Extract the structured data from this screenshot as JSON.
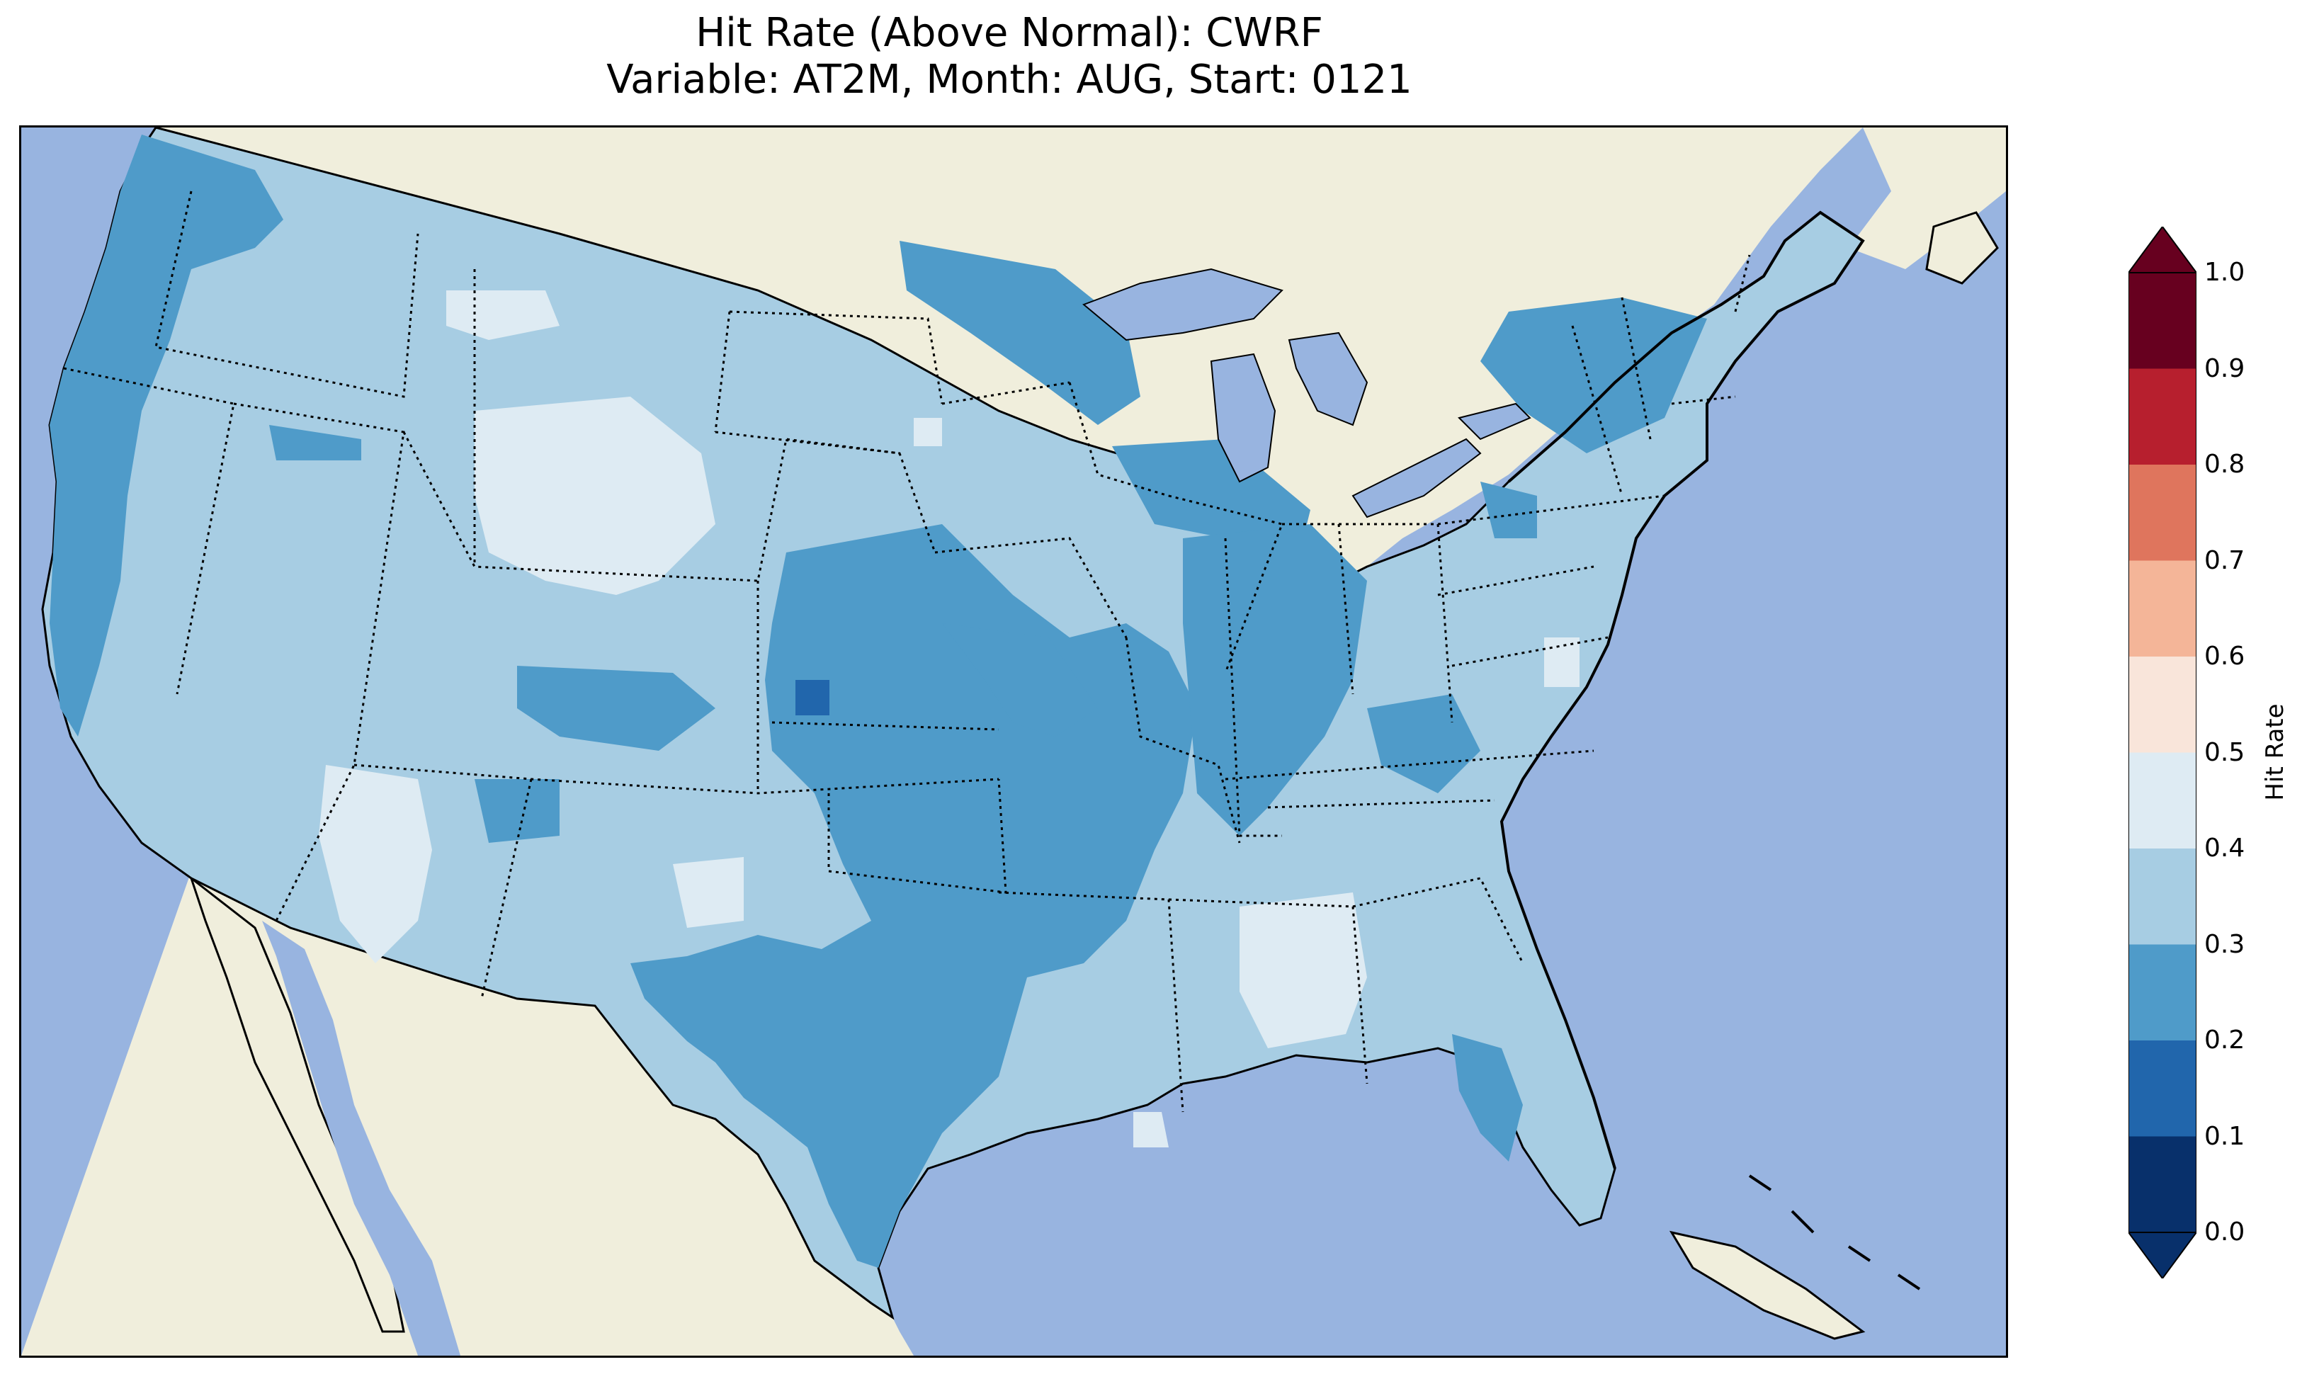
{
  "title": {
    "line1": "Hit Rate (Above Normal): CWRF",
    "line2": "Variable: AT2M, Month: AUG, Start: 0121"
  },
  "map": {
    "region": "Continental United States",
    "land_color": "#f0eedc",
    "water_color": "#98b4e0",
    "state_borders": "dotted",
    "coastlines": "solid"
  },
  "colorbar": {
    "label": "Hit Rate",
    "extend": "both",
    "ticks": [
      "0.0",
      "0.1",
      "0.2",
      "0.3",
      "0.4",
      "0.5",
      "0.6",
      "0.7",
      "0.8",
      "0.9",
      "1.0"
    ],
    "bins": [
      {
        "range": [
          0.0,
          0.1
        ],
        "color": "#08306b"
      },
      {
        "range": [
          0.1,
          0.2
        ],
        "color": "#2166ac"
      },
      {
        "range": [
          0.2,
          0.3
        ],
        "color": "#4f9bc9"
      },
      {
        "range": [
          0.3,
          0.4
        ],
        "color": "#a7cde3"
      },
      {
        "range": [
          0.4,
          0.5
        ],
        "color": "#deebf3"
      },
      {
        "range": [
          0.5,
          0.6
        ],
        "color": "#f9e5da"
      },
      {
        "range": [
          0.6,
          0.7
        ],
        "color": "#f4b598"
      },
      {
        "range": [
          0.7,
          0.8
        ],
        "color": "#df755d"
      },
      {
        "range": [
          0.8,
          0.9
        ],
        "color": "#b71f2e"
      },
      {
        "range": [
          0.9,
          1.0
        ],
        "color": "#67001f"
      }
    ]
  }
}
